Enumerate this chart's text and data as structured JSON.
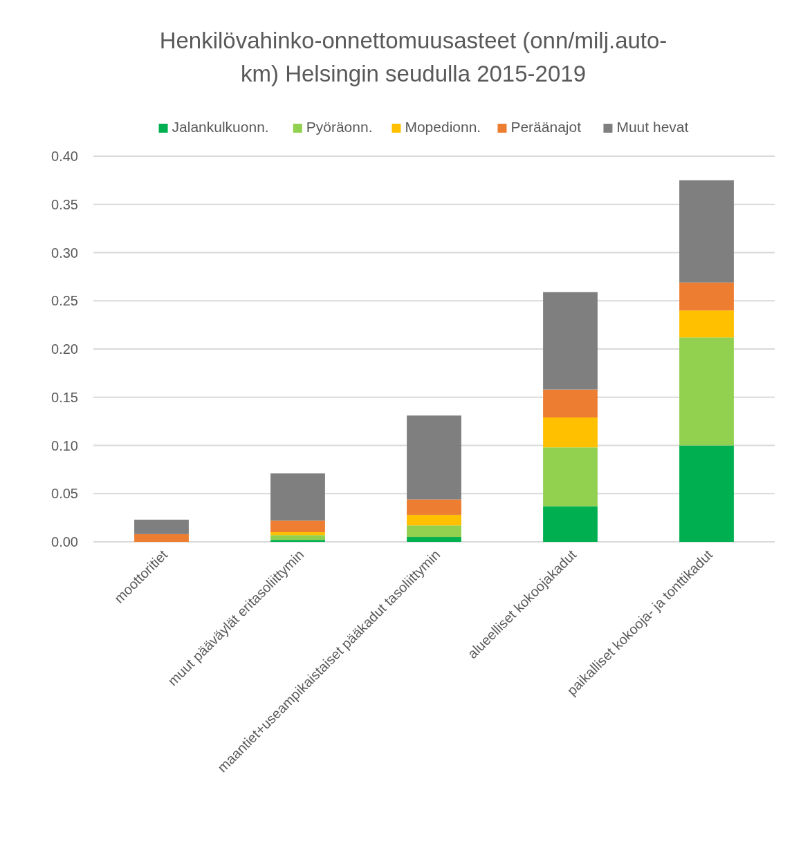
{
  "chart_data": {
    "type": "bar",
    "title": "Henkilövahinko-onnettomuusasteet (onn/milj.auto-km) Helsingin seudulla 2015-2019",
    "categories": [
      "moottoritiet",
      "muut pääväylät eritasoliittymin",
      "maantiet+useampikaistaiset pääkadut tasoliittymin",
      "alueelliset kokoojakadut",
      "paikalliset kokooja- ja tonttikadut"
    ],
    "stacked": true,
    "series": [
      {
        "name": "Jalankulkuonn.",
        "color": "#00b050",
        "values": [
          0,
          0.002,
          0.005,
          0.037,
          0.1
        ]
      },
      {
        "name": "Pyöräonn.",
        "color": "#92d050",
        "values": [
          0,
          0.005,
          0.012,
          0.061,
          0.112
        ]
      },
      {
        "name": "Mopedionn.",
        "color": "#ffc000",
        "values": [
          0,
          0.003,
          0.011,
          0.031,
          0.028
        ]
      },
      {
        "name": "Peräänajot",
        "color": "#ed7d31",
        "values": [
          0.008,
          0.012,
          0.016,
          0.029,
          0.029
        ]
      },
      {
        "name": "Muut hevat",
        "color": "#7f7f7f",
        "values": [
          0.015,
          0.049,
          0.087,
          0.101,
          0.106
        ]
      }
    ],
    "ylim": [
      0,
      0.4
    ],
    "yticks": [
      {
        "value": 0,
        "label": "0.00"
      },
      {
        "value": 0.05,
        "label": "0.05"
      },
      {
        "value": 0.1,
        "label": "0.10"
      },
      {
        "value": 0.15,
        "label": "0.15"
      },
      {
        "value": 0.2,
        "label": "0.20"
      },
      {
        "value": 0.25,
        "label": "0.25"
      },
      {
        "value": 0.3,
        "label": "0.30"
      },
      {
        "value": 0.35,
        "label": "0.35"
      },
      {
        "value": 0.4,
        "label": "0.40"
      }
    ],
    "grid": "y",
    "legend": "top"
  }
}
